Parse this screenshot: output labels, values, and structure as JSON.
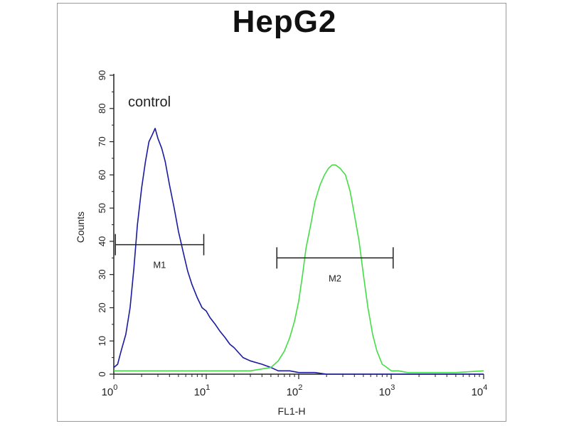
{
  "title": "HepG2",
  "colors": {
    "control": "#1a1aa0",
    "sample": "#44dd44",
    "axis": "#222222"
  },
  "chart_data": {
    "type": "line",
    "title": "HepG2",
    "xlabel": "FL1-H",
    "ylabel": "Counts",
    "x_scale": "log",
    "xlim": [
      1,
      10000
    ],
    "ylim": [
      0,
      90
    ],
    "x_ticks": [
      {
        "value": 1,
        "base": "10",
        "exp": "0"
      },
      {
        "value": 10,
        "base": "10",
        "exp": "1"
      },
      {
        "value": 100,
        "base": "10",
        "exp": "2"
      },
      {
        "value": 1000,
        "base": "10",
        "exp": "3"
      },
      {
        "value": 10000,
        "base": "10",
        "exp": "4"
      }
    ],
    "y_ticks": [
      "0",
      "10",
      "20",
      "30",
      "40",
      "50",
      "60",
      "70",
      "80",
      "90"
    ],
    "annotations": [
      "control"
    ],
    "series": [
      {
        "color": "#1a1aa0",
        "x": [
          1,
          1.1,
          1.2,
          1.35,
          1.5,
          1.65,
          1.8,
          2.0,
          2.2,
          2.4,
          2.6,
          2.8,
          3.0,
          3.3,
          3.6,
          4.0,
          4.5,
          5.0,
          5.6,
          6.3,
          7.0,
          8.0,
          9.0,
          10,
          11,
          12.5,
          14,
          16,
          18,
          20,
          25,
          30,
          40,
          50,
          60,
          80,
          100,
          150,
          200,
          300,
          500,
          1000,
          10000
        ],
        "y": [
          2,
          3,
          7,
          12,
          20,
          32,
          45,
          56,
          64,
          70,
          72,
          74,
          71,
          68,
          64,
          57,
          50,
          43,
          37,
          31,
          27,
          23,
          20,
          19,
          17,
          15,
          13,
          11,
          9,
          8,
          5,
          4,
          3,
          2,
          1,
          1,
          0.5,
          0.5,
          0,
          0,
          0,
          0,
          0
        ]
      },
      {
        "color": "#44dd44",
        "x": [
          1,
          10,
          30,
          50,
          60,
          70,
          80,
          90,
          100,
          110,
          120,
          135,
          150,
          170,
          190,
          210,
          230,
          250,
          280,
          320,
          360,
          400,
          450,
          500,
          560,
          630,
          700,
          800,
          900,
          1000,
          1200,
          1500,
          2000,
          5000,
          10000
        ],
        "y": [
          1,
          1,
          1,
          2,
          4,
          7,
          11,
          16,
          22,
          30,
          38,
          45,
          52,
          57,
          60,
          62,
          63,
          63,
          62,
          60,
          55,
          48,
          40,
          30,
          20,
          12,
          7,
          3,
          2,
          1,
          1,
          0.5,
          0.5,
          0.5,
          1
        ]
      }
    ],
    "markers": [
      {
        "label": "M1",
        "x1": 1.04,
        "x2": 9.4,
        "y": 39
      },
      {
        "label": "M2",
        "x1": 58,
        "x2": 1050,
        "y": 35
      }
    ]
  }
}
